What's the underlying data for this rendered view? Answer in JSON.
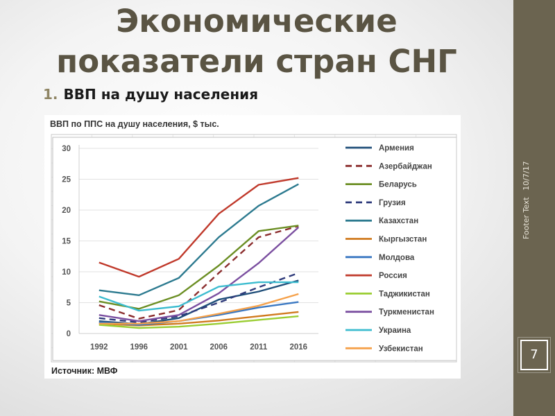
{
  "slide": {
    "title_line1": "Экономические",
    "title_line2": "показатели стран СНГ",
    "subtitle_number": "1.",
    "subtitle_text": "ВВП на душу населения",
    "footer_text": "Footer Text",
    "footer_date": "10/7/17",
    "page_number": "7"
  },
  "colors": {
    "sidebar": "#6b6450",
    "title": "#5a5443",
    "accent": "#8e8463"
  },
  "chart_data": {
    "type": "line",
    "title": "ВВП по ППС на душу населения, $ тыс.",
    "source": "Источник: МВФ",
    "categories": [
      "1992",
      "1996",
      "2001",
      "2006",
      "2011",
      "2016"
    ],
    "y_ticks": [
      "0",
      "5",
      "10",
      "15",
      "20",
      "25",
      "30"
    ],
    "ylim": [
      0,
      30
    ],
    "legend_position": "right",
    "series": [
      {
        "name": "Армения",
        "color": "#1f4e79",
        "dash": false,
        "values": [
          2.0,
          1.5,
          2.5,
          5.5,
          6.8,
          8.6
        ]
      },
      {
        "name": "Азербайджан",
        "color": "#8b2d2d",
        "dash": true,
        "values": [
          4.6,
          2.4,
          3.8,
          9.8,
          15.6,
          17.4
        ]
      },
      {
        "name": "Беларусь",
        "color": "#6b8e23",
        "dash": false,
        "values": [
          5.2,
          4.0,
          6.2,
          11.0,
          16.6,
          17.5
        ]
      },
      {
        "name": "Грузия",
        "color": "#2e3a7a",
        "dash": true,
        "values": [
          2.5,
          1.8,
          2.8,
          5.0,
          7.5,
          9.8
        ]
      },
      {
        "name": "Казахстан",
        "color": "#2c7a8f",
        "dash": false,
        "values": [
          7.0,
          6.2,
          9.0,
          15.6,
          20.7,
          24.2
        ]
      },
      {
        "name": "Кыргызстан",
        "color": "#d07a1e",
        "dash": false,
        "values": [
          1.6,
          1.3,
          1.6,
          2.1,
          2.8,
          3.5
        ]
      },
      {
        "name": "Молдова",
        "color": "#3a78c2",
        "dash": false,
        "values": [
          1.8,
          1.4,
          2.0,
          3.0,
          4.2,
          5.1
        ]
      },
      {
        "name": "Россия",
        "color": "#c0392b",
        "dash": false,
        "values": [
          11.5,
          9.2,
          12.1,
          19.4,
          24.1,
          25.2
        ]
      },
      {
        "name": "Таджикистан",
        "color": "#9acd32",
        "dash": false,
        "values": [
          1.4,
          0.9,
          1.1,
          1.6,
          2.2,
          2.8
        ]
      },
      {
        "name": "Туркменистан",
        "color": "#7b4fa0",
        "dash": false,
        "values": [
          3.0,
          2.0,
          3.0,
          6.5,
          11.4,
          17.2
        ]
      },
      {
        "name": "Украина",
        "color": "#3cbccf",
        "dash": false,
        "values": [
          6.0,
          3.7,
          4.4,
          7.6,
          8.3,
          8.3
        ]
      },
      {
        "name": "Узбекистан",
        "color": "#f5a14a",
        "dash": false,
        "values": [
          1.6,
          1.6,
          2.0,
          3.2,
          4.5,
          6.4
        ]
      }
    ]
  }
}
